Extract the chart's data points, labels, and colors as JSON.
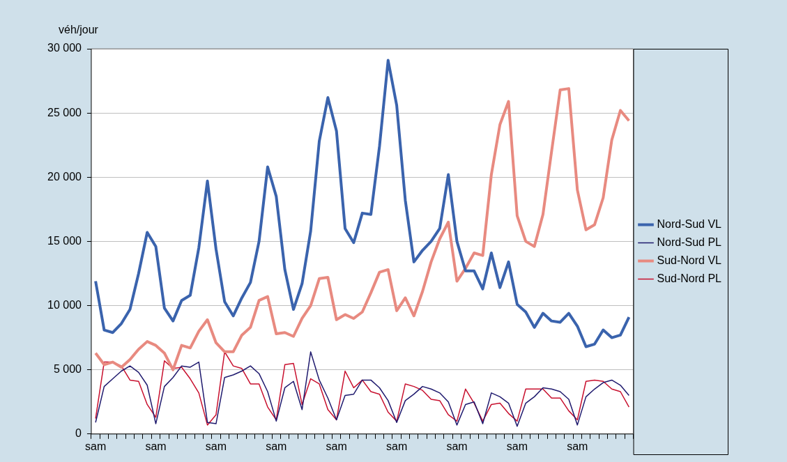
{
  "chart_data": {
    "type": "line",
    "ylabel": "véh/jour",
    "categories": [
      "sam",
      null,
      null,
      null,
      null,
      null,
      null,
      "sam",
      null,
      null,
      null,
      null,
      null,
      null,
      "sam",
      null,
      null,
      null,
      null,
      null,
      null,
      "sam",
      null,
      null,
      null,
      null,
      null,
      null,
      "sam",
      null,
      null,
      null,
      null,
      null,
      null,
      "sam",
      null,
      null,
      null,
      null,
      null,
      null,
      "sam",
      null,
      null,
      null,
      null,
      null,
      null,
      "sam",
      null,
      null,
      null,
      null,
      null,
      null,
      "sam",
      null,
      null,
      null,
      null,
      null,
      null
    ],
    "ylim": [
      0,
      30000
    ],
    "yticks": [
      {
        "value": 0,
        "label": "0"
      },
      {
        "value": 5000,
        "label": "5 000"
      },
      {
        "value": 10000,
        "label": "10 000"
      },
      {
        "value": 15000,
        "label": "15 000"
      },
      {
        "value": 20000,
        "label": "20 000"
      },
      {
        "value": 25000,
        "label": "25 000"
      },
      {
        "value": 30000,
        "label": "30 000"
      }
    ],
    "grid": "y",
    "legend": "right",
    "marker": "none",
    "line_style": "solid",
    "series": [
      {
        "name": "Nord-Sud VL",
        "color": "#3a63ad",
        "values": [
          11900,
          8100,
          7900,
          8600,
          9700,
          12500,
          15700,
          14600,
          9800,
          8800,
          10400,
          10800,
          14500,
          19700,
          14400,
          10300,
          9200,
          10600,
          11800,
          15000,
          20800,
          18500,
          12800,
          9700,
          11700,
          15800,
          22800,
          26200,
          23600,
          16000,
          14900,
          17200,
          17100,
          22400,
          29100,
          25600,
          18200,
          13400,
          14300,
          15000,
          16000,
          20200,
          15000,
          12700,
          12700,
          11300,
          14100,
          11400,
          13400,
          10100,
          9500,
          8300,
          9400,
          8800,
          8700,
          9400,
          8400,
          6800,
          7000,
          8100,
          7500,
          7700,
          9100
        ]
      },
      {
        "name": "Nord-Sud PL",
        "color": "#1f1a6e",
        "values": [
          900,
          3700,
          4300,
          4900,
          5300,
          4800,
          3800,
          800,
          3700,
          4400,
          5300,
          5200,
          5600,
          900,
          800,
          4400,
          4600,
          4900,
          5300,
          4700,
          3300,
          1000,
          3600,
          4100,
          1900,
          6400,
          4200,
          2800,
          1100,
          3000,
          3100,
          4200,
          4200,
          3600,
          2600,
          900,
          2600,
          3100,
          3700,
          3500,
          3200,
          2500,
          700,
          2300,
          2500,
          800,
          3200,
          2900,
          2400,
          600,
          2400,
          2900,
          3600,
          3500,
          3300,
          2700,
          700,
          2900,
          3500,
          4000,
          4200,
          3800,
          3000
        ]
      },
      {
        "name": "Sud-Nord VL",
        "color": "#e88a80",
        "values": [
          6300,
          5400,
          5600,
          5200,
          5800,
          6600,
          7200,
          6900,
          6300,
          5000,
          6900,
          6700,
          8000,
          8900,
          7100,
          6400,
          6400,
          7700,
          8300,
          10400,
          10700,
          7800,
          7900,
          7600,
          9000,
          10000,
          12100,
          12200,
          8900,
          9300,
          9000,
          9500,
          11000,
          12600,
          12800,
          9600,
          10600,
          9200,
          11100,
          13400,
          15200,
          16500,
          11900,
          12900,
          14100,
          13900,
          20200,
          24100,
          25900,
          17000,
          15000,
          14600,
          17100,
          22000,
          26800,
          26900,
          19000,
          15900,
          16300,
          18400,
          22900,
          25200,
          24400
        ]
      },
      {
        "name": "Sud-Nord PL",
        "color": "#c8102e",
        "values": [
          1200,
          5600,
          5600,
          5300,
          4200,
          4100,
          2300,
          1300,
          5700,
          5100,
          5200,
          4300,
          3200,
          700,
          1500,
          6400,
          5300,
          5100,
          3900,
          3900,
          2100,
          1100,
          5400,
          5500,
          2300,
          4300,
          3900,
          1900,
          1100,
          4900,
          3600,
          4200,
          3300,
          3100,
          1700,
          1000,
          3900,
          3700,
          3400,
          2700,
          2600,
          1500,
          1000,
          3500,
          2400,
          1000,
          2300,
          2400,
          1600,
          1000,
          3500,
          3500,
          3500,
          2800,
          2800,
          1800,
          1100,
          4100,
          4200,
          4100,
          3500,
          3300,
          2100
        ]
      }
    ]
  }
}
